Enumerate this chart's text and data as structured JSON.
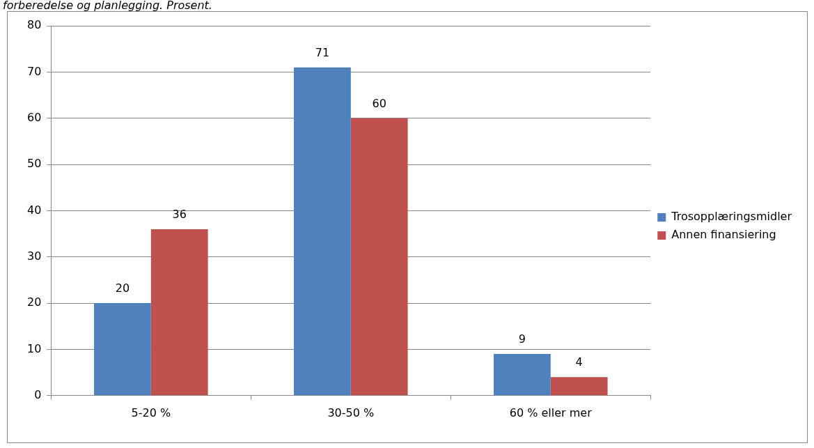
{
  "chart_data": {
    "type": "bar",
    "title": "forberedelse og planlegging. Prosent.",
    "categories": [
      "5-20 %",
      "30-50 %",
      "60 % eller mer"
    ],
    "series": [
      {
        "name": "Trosopplæringsmidler",
        "color": "#4f81bd",
        "values": [
          20,
          71,
          9
        ]
      },
      {
        "name": "Annen finansiering",
        "color": "#c0504d",
        "values": [
          36,
          60,
          4
        ]
      }
    ],
    "ylim": [
      0,
      80
    ],
    "yticks": [
      0,
      10,
      20,
      30,
      40,
      50,
      60,
      70,
      80
    ],
    "grid": "y",
    "legend": "right",
    "data_labels": true
  }
}
